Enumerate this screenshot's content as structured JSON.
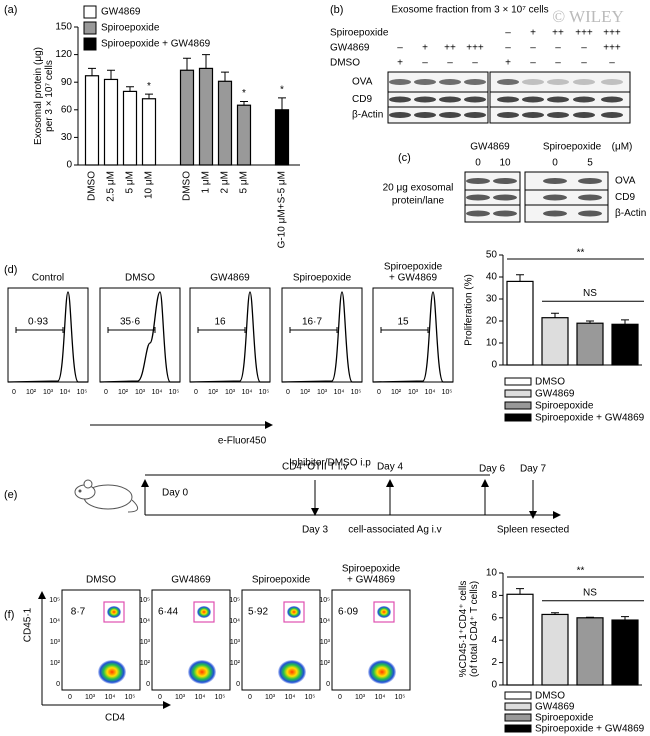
{
  "chart_data": [
    {
      "type": "bar",
      "ylabel": [
        "Exosomal protein (μg)",
        "per 3 × 10⁷ cells"
      ],
      "categories": [
        "DMSO",
        "2.5 μM",
        "5 μM",
        "10 μM",
        "DMSO",
        "1 μM",
        "2 μM",
        "5 μM",
        "G-10 μM+S-5 μM"
      ],
      "series": [
        {
          "name": "GW4869",
          "color": "#ffffff",
          "values": [
            97,
            93,
            80,
            72,
            null,
            null,
            null,
            null,
            null
          ],
          "errors": [
            8,
            10,
            5,
            5,
            null,
            null,
            null,
            null,
            null
          ]
        },
        {
          "name": "Spiroepoxide",
          "color": "#999999",
          "values": [
            null,
            null,
            null,
            null,
            103,
            105,
            91,
            65,
            null
          ],
          "errors": [
            null,
            null,
            null,
            null,
            13,
            15,
            10,
            4,
            null
          ]
        },
        {
          "name": "Spiroepoxide + GW4869",
          "color": "#000000",
          "values": [
            null,
            null,
            null,
            null,
            null,
            null,
            null,
            null,
            60
          ],
          "errors": [
            null,
            null,
            null,
            null,
            null,
            null,
            null,
            null,
            13
          ]
        }
      ],
      "significance": [
        null,
        null,
        null,
        "*",
        null,
        null,
        null,
        "*",
        "*"
      ],
      "ylim": [
        0,
        150
      ],
      "yticks": [
        0,
        30,
        60,
        90,
        120,
        150
      ]
    },
    {
      "type": "bar",
      "ylabel": [
        "Proliferation (%)"
      ],
      "series": [
        {
          "name": "DMSO",
          "color": "#ffffff",
          "values": [
            38
          ],
          "errors": [
            3
          ]
        },
        {
          "name": "GW4869",
          "color": "#dddddd",
          "values": [
            21.5
          ],
          "errors": [
            2
          ]
        },
        {
          "name": "Spiroepoxide",
          "color": "#999999",
          "values": [
            19
          ],
          "errors": [
            1
          ]
        },
        {
          "name": "Spiroepoxide + GW4869",
          "color": "#000000",
          "values": [
            18.5
          ],
          "errors": [
            2
          ]
        }
      ],
      "annotations": [
        "**",
        "NS"
      ],
      "ylim": [
        0,
        50
      ],
      "yticks": [
        0,
        10,
        20,
        30,
        40,
        50
      ]
    },
    {
      "type": "bar",
      "ylabel": [
        "%CD45·1⁺CD4⁺ cells",
        "(of total CD4⁺ T cells)"
      ],
      "series": [
        {
          "name": "DMSO",
          "color": "#ffffff",
          "values": [
            8.1
          ],
          "errors": [
            0.5
          ]
        },
        {
          "name": "GW4869",
          "color": "#dddddd",
          "values": [
            6.3
          ],
          "errors": [
            0.15
          ]
        },
        {
          "name": "Spiroepoxide",
          "color": "#999999",
          "values": [
            6.0
          ],
          "errors": [
            0.05
          ]
        },
        {
          "name": "Spiroepoxide + GW4869",
          "color": "#000000",
          "values": [
            5.8
          ],
          "errors": [
            0.3
          ]
        }
      ],
      "annotations": [
        "**",
        "NS"
      ],
      "ylim": [
        0,
        10
      ],
      "yticks": [
        0,
        2,
        4,
        6,
        8,
        10
      ]
    }
  ],
  "figure": {
    "panel_labels": [
      "(a)",
      "(b)",
      "(c)",
      "(d)",
      "(e)",
      "(f)"
    ],
    "watermark": "© WILEY",
    "blot_b": {
      "title": "Exosome fraction from 3 × 10⁷ cells",
      "conditions": [
        {
          "name": "Spiroepoxide",
          "lanes": [
            null,
            null,
            null,
            null,
            "–",
            "+",
            "++",
            "+++",
            "+++"
          ]
        },
        {
          "name": "GW4869",
          "lanes": [
            "–",
            "+",
            "++",
            "+++",
            "–",
            "–",
            "–",
            "–",
            "+++"
          ]
        },
        {
          "name": "DMSO",
          "lanes": [
            "+",
            "–",
            "–",
            "–",
            "+",
            "–",
            "–",
            "–",
            "–"
          ]
        }
      ],
      "bands": [
        "OVA",
        "CD9",
        "β-Actin"
      ]
    },
    "blot_c": {
      "groups": [
        "GW4869",
        "Spiroepoxide"
      ],
      "unit": "(μM)",
      "lanes": [
        "0",
        "10",
        "0",
        "5"
      ],
      "loading": [
        "20 μg exosomal",
        "protein/lane"
      ],
      "bands": [
        "OVA",
        "CD9",
        "β-Actin"
      ]
    },
    "flow_d": {
      "titles": [
        [
          "Control"
        ],
        [
          "DMSO"
        ],
        [
          "GW4869"
        ],
        [
          "Spiroepoxide"
        ],
        [
          "Spiroepoxide",
          "+ GW4869"
        ]
      ],
      "gates": [
        "0·93",
        "35·6",
        "16",
        "16·7",
        "15"
      ],
      "axis_ticks": [
        "0",
        "10²",
        "10³",
        "10⁴",
        "10⁵"
      ],
      "xlabel": "e-Fluor450"
    },
    "timeline_e": {
      "treatment": "Inhibitor/DMSO i.p",
      "day0": "Day 0",
      "transfer": "CD4⁺OTII T i.v",
      "day4": "Day 4",
      "day6": "Day 6",
      "day7": "Day 7",
      "day3": "Day 3",
      "antigen": "cell-associated Ag i.v",
      "harvest": "Spleen resected"
    },
    "flow_f": {
      "titles": [
        [
          "DMSO"
        ],
        [
          "GW4869"
        ],
        [
          "Spiroepoxide"
        ],
        [
          "Spiroepoxide",
          "+ GW4869"
        ]
      ],
      "gates": [
        "8·7",
        "6·44",
        "5·92",
        "6·09"
      ],
      "ylabel": "CD45·1",
      "xlabel": "CD4",
      "x_ticks": [
        "0",
        "10³",
        "10⁴",
        "10⁵"
      ],
      "y_ticks": [
        "0",
        "10²",
        "10³",
        "10⁴",
        "10⁵"
      ]
    }
  }
}
